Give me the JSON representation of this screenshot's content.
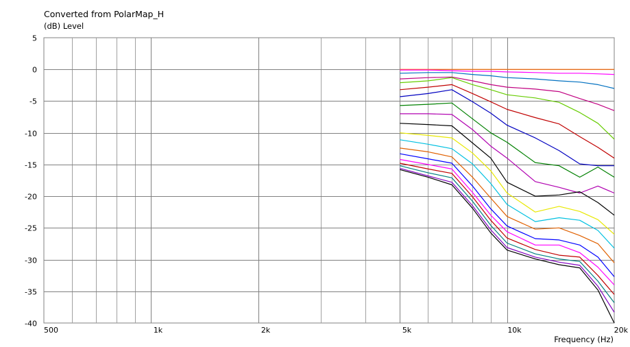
{
  "chart_data": {
    "type": "line",
    "title": "Converted from PolarMap_H",
    "ylabel": "(dB)  Level",
    "xlabel": "Frequency  (Hz)",
    "xscale": "log",
    "xlim": [
      500,
      20000
    ],
    "ylim": [
      -40,
      5
    ],
    "grid": true,
    "x_ticks": [
      {
        "value": 500,
        "label": "500"
      },
      {
        "value": 1000,
        "label": "1k"
      },
      {
        "value": 2000,
        "label": "2k"
      },
      {
        "value": 5000,
        "label": "5k"
      },
      {
        "value": 10000,
        "label": "10k"
      },
      {
        "value": 20000,
        "label": "20k"
      }
    ],
    "x_minor_grid": [
      600,
      700,
      800,
      900,
      3000,
      4000,
      6000,
      7000,
      8000,
      9000
    ],
    "y_ticks": [
      5,
      0,
      -5,
      -10,
      -15,
      -20,
      -25,
      -30,
      -35,
      -40
    ],
    "x": [
      5000,
      6000,
      7000,
      8000,
      9000,
      10000,
      12000,
      14000,
      16000,
      18000,
      20000
    ],
    "series": [
      {
        "color": "#ff6600",
        "values": [
          0.0,
          0.0,
          0.0,
          0.0,
          0.0,
          0.0,
          0.0,
          0.0,
          0.0,
          0.0,
          0.0
        ]
      },
      {
        "color": "#ff00ff",
        "values": [
          -0.1,
          -0.1,
          -0.2,
          -0.3,
          -0.3,
          -0.4,
          -0.5,
          -0.6,
          -0.6,
          -0.7,
          -0.8
        ]
      },
      {
        "color": "#0070c0",
        "values": [
          -0.6,
          -0.5,
          -0.5,
          -0.8,
          -1.0,
          -1.3,
          -1.5,
          -1.8,
          -2.0,
          -2.4,
          -3.0
        ]
      },
      {
        "color": "#c00080",
        "values": [
          -1.5,
          -1.3,
          -1.2,
          -1.8,
          -2.4,
          -2.8,
          -3.1,
          -3.5,
          -4.6,
          -5.5,
          -6.5
        ]
      },
      {
        "color": "#66cc00",
        "values": [
          -2.1,
          -1.8,
          -1.3,
          -2.4,
          -3.2,
          -4.0,
          -4.5,
          -5.2,
          -6.8,
          -8.5,
          -11.0
        ]
      },
      {
        "color": "#c00000",
        "values": [
          -3.2,
          -2.8,
          -2.4,
          -3.8,
          -5.1,
          -6.3,
          -7.6,
          -8.6,
          -10.6,
          -12.3,
          -14.0
        ]
      },
      {
        "color": "#0000c0",
        "values": [
          -4.3,
          -3.8,
          -3.2,
          -5.1,
          -6.9,
          -8.8,
          -10.8,
          -12.8,
          -14.9,
          -15.2,
          -15.2
        ]
      },
      {
        "color": "#008000",
        "values": [
          -5.7,
          -5.5,
          -5.3,
          -7.8,
          -10.0,
          -11.5,
          -14.7,
          -15.2,
          -17.0,
          -15.4,
          -17.0
        ]
      },
      {
        "color": "#b000b0",
        "values": [
          -7.0,
          -7.0,
          -7.1,
          -9.5,
          -12.1,
          -14.0,
          -17.7,
          -18.6,
          -19.5,
          -18.4,
          -19.5
        ]
      },
      {
        "color": "#000000",
        "values": [
          -8.5,
          -8.7,
          -8.9,
          -11.6,
          -14.0,
          -17.8,
          -20.0,
          -19.8,
          -19.3,
          -21.0,
          -23.0
        ]
      },
      {
        "color": "#e8e800",
        "values": [
          -10.0,
          -10.4,
          -10.8,
          -13.2,
          -16.0,
          -19.5,
          -22.5,
          -21.6,
          -22.4,
          -23.7,
          -26.0
        ]
      },
      {
        "color": "#00c0e0",
        "values": [
          -11.1,
          -11.8,
          -12.5,
          -14.9,
          -18.0,
          -21.3,
          -24.0,
          -23.4,
          -23.8,
          -25.4,
          -28.2
        ]
      },
      {
        "color": "#e06000",
        "values": [
          -12.4,
          -13.0,
          -13.8,
          -17.0,
          -20.3,
          -23.2,
          -25.2,
          -25.0,
          -26.2,
          -27.5,
          -30.5
        ]
      },
      {
        "color": "#0000ff",
        "values": [
          -13.3,
          -14.1,
          -14.8,
          -18.4,
          -22.0,
          -24.7,
          -26.7,
          -26.9,
          -27.7,
          -29.6,
          -32.7
        ]
      },
      {
        "color": "#ff00ff",
        "values": [
          -14.2,
          -15.0,
          -15.7,
          -19.4,
          -23.0,
          -25.6,
          -27.7,
          -27.7,
          -28.9,
          -31.2,
          -34.0
        ]
      },
      {
        "color": "#c00000",
        "values": [
          -14.8,
          -15.7,
          -16.4,
          -20.1,
          -23.8,
          -26.6,
          -28.4,
          -29.3,
          -29.6,
          -32.5,
          -35.5
        ]
      },
      {
        "color": "#008080",
        "values": [
          -15.2,
          -16.3,
          -17.1,
          -20.8,
          -24.6,
          -27.4,
          -29.1,
          -29.9,
          -30.3,
          -33.4,
          -36.8
        ]
      },
      {
        "color": "#8000c0",
        "values": [
          -15.6,
          -16.8,
          -17.8,
          -21.5,
          -25.3,
          -28.1,
          -29.6,
          -30.4,
          -30.9,
          -34.2,
          -38.3
        ]
      },
      {
        "color": "#000000",
        "values": [
          -15.8,
          -17.0,
          -18.2,
          -21.9,
          -25.8,
          -28.5,
          -29.9,
          -30.8,
          -31.3,
          -34.8,
          -40.0
        ]
      }
    ]
  }
}
